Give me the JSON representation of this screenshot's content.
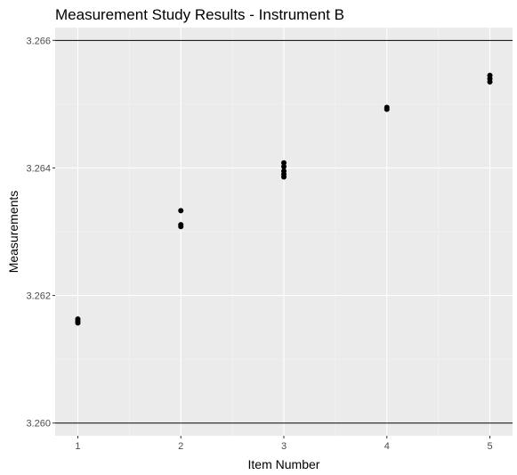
{
  "chart_data": {
    "type": "scatter",
    "title": "Measurement Study Results - Instrument B",
    "xlabel": "Item Number",
    "ylabel": "Measurements",
    "x_ticks": [
      1,
      2,
      3,
      4,
      5
    ],
    "y_ticks": [
      "3.260",
      "3.262",
      "3.264",
      "3.266"
    ],
    "xlim": [
      0.78,
      5.22
    ],
    "ylim": [
      3.2598,
      3.2662
    ],
    "grid": true,
    "legend": "none",
    "reference_lines": [
      3.26,
      3.266
    ],
    "point_color": "#000000",
    "panel_color": "#ebebeb",
    "points": [
      {
        "x": 1,
        "y": 3.26157
      },
      {
        "x": 1,
        "y": 3.2616
      },
      {
        "x": 1,
        "y": 3.26163
      },
      {
        "x": 2,
        "y": 3.26308
      },
      {
        "x": 2,
        "y": 3.26311
      },
      {
        "x": 2,
        "y": 3.26333
      },
      {
        "x": 3,
        "y": 3.26386
      },
      {
        "x": 3,
        "y": 3.2639
      },
      {
        "x": 3,
        "y": 3.26395
      },
      {
        "x": 3,
        "y": 3.26402
      },
      {
        "x": 3,
        "y": 3.26408
      },
      {
        "x": 4,
        "y": 3.26492
      },
      {
        "x": 4,
        "y": 3.26495
      },
      {
        "x": 5,
        "y": 3.26535
      },
      {
        "x": 5,
        "y": 3.2654
      },
      {
        "x": 5,
        "y": 3.26545
      }
    ]
  }
}
